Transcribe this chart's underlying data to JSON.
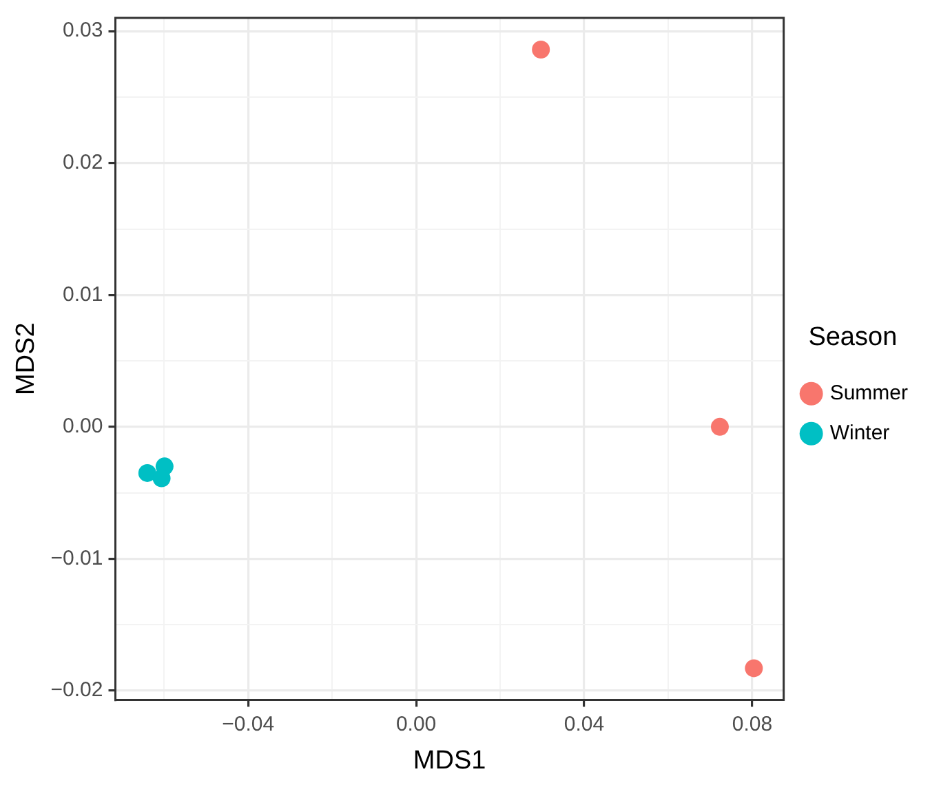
{
  "chart_data": {
    "type": "scatter",
    "xlabel": "MDS1",
    "ylabel": "MDS2",
    "legend_title": "Season",
    "legend": "right",
    "grid": true,
    "marker": "circle",
    "xlim": [
      -0.0716,
      0.0875
    ],
    "ylim": [
      -0.0207,
      0.031
    ],
    "xticks": [
      {
        "value": -0.06,
        "label": null
      },
      {
        "value": -0.04,
        "label": "−0.04"
      },
      {
        "value": -0.02,
        "label": null
      },
      {
        "value": 0,
        "label": "0.00"
      },
      {
        "value": 0.02,
        "label": null
      },
      {
        "value": 0.04,
        "label": "0.04"
      },
      {
        "value": 0.06,
        "label": null
      },
      {
        "value": 0.08,
        "label": "0.08"
      }
    ],
    "yticks": [
      {
        "value": -0.02,
        "label": "−0.02"
      },
      {
        "value": -0.015,
        "label": null
      },
      {
        "value": -0.01,
        "label": "−0.01"
      },
      {
        "value": -0.005,
        "label": null
      },
      {
        "value": 0,
        "label": "0.00"
      },
      {
        "value": 0.005,
        "label": null
      },
      {
        "value": 0.01,
        "label": "0.01"
      },
      {
        "value": 0.015,
        "label": null
      },
      {
        "value": 0.02,
        "label": "0.02"
      },
      {
        "value": 0.025,
        "label": null
      },
      {
        "value": 0.03,
        "label": "0.03"
      }
    ],
    "series": [
      {
        "name": "Summer",
        "color": "#f8766d",
        "x": [
          0.0297,
          0.0723,
          0.0804
        ],
        "values": [
          0.0286,
          0.0,
          -0.0183
        ]
      },
      {
        "name": "Winter",
        "color": "#00bfc4",
        "x": [
          -0.064,
          -0.0599,
          -0.0606
        ],
        "values": [
          -0.0035,
          -0.003,
          -0.0039
        ]
      }
    ]
  }
}
